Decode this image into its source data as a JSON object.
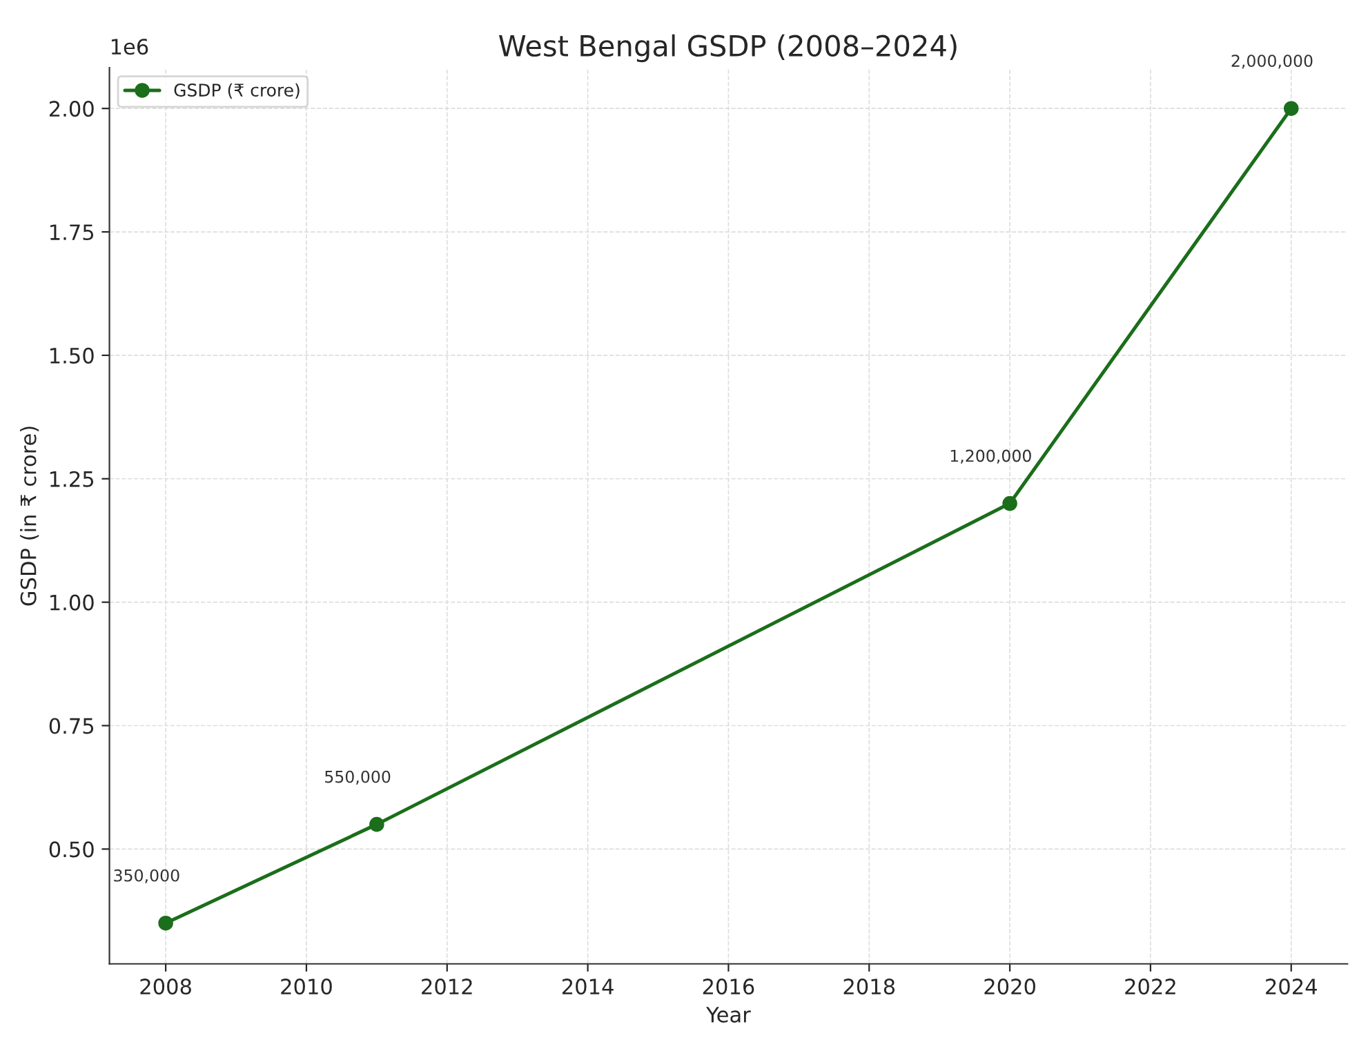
{
  "chart_data": {
    "type": "line",
    "title": "West Bengal GSDP (2008–2024)",
    "xlabel": "Year",
    "ylabel": "GSDP (in ₹ crore)",
    "x": [
      2008,
      2011,
      2020,
      2024
    ],
    "series": [
      {
        "name": "GSDP (₹ crore)",
        "color": "#1b6e1b",
        "values": [
          0.35,
          0.55,
          1.2,
          2.0
        ]
      }
    ],
    "xlim": [
      2007.2,
      2024.8
    ],
    "xticks": [
      2008,
      2010,
      2012,
      2014,
      2016,
      2018,
      2020,
      2022,
      2024
    ],
    "ylim": [
      0.2675,
      2.0825
    ],
    "yticks": [
      {
        "value": 0.5,
        "label": "0.50"
      },
      {
        "value": 0.75,
        "label": "0.75"
      },
      {
        "value": 1.0,
        "label": "1.00"
      },
      {
        "value": 1.25,
        "label": "1.25"
      },
      {
        "value": 1.5,
        "label": "1.50"
      },
      {
        "value": 1.75,
        "label": "1.75"
      },
      {
        "value": 2.0,
        "label": "2.00"
      }
    ],
    "annotations": [
      "1e6",
      {
        "text": "350,000",
        "x": 2008,
        "y": 0.35
      },
      {
        "text": "550,000",
        "x": 2011,
        "y": 0.55
      },
      {
        "text": "1,200,000",
        "x": 2020,
        "y": 1.2
      },
      {
        "text": "2,000,000",
        "x": 2024,
        "y": 2.0
      }
    ],
    "grid": true,
    "legend": "top left",
    "marker": "circle",
    "line_style": "solid"
  }
}
